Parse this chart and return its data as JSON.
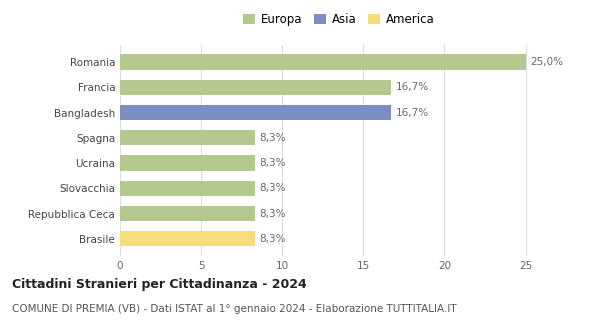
{
  "categories_top_to_bottom": [
    "Romania",
    "Francia",
    "Bangladesh",
    "Spagna",
    "Ucraina",
    "Slovacchia",
    "Repubblica Ceca",
    "Brasile"
  ],
  "values_top_to_bottom": [
    25.0,
    16.7,
    16.7,
    8.3,
    8.3,
    8.3,
    8.3,
    8.3
  ],
  "colors_top_to_bottom": [
    "#b5c98e",
    "#b5c98e",
    "#7b8ec4",
    "#b5c98e",
    "#b5c98e",
    "#b5c98e",
    "#b5c98e",
    "#f7dc7a"
  ],
  "labels_top_to_bottom": [
    "25,0%",
    "16,7%",
    "16,7%",
    "8,3%",
    "8,3%",
    "8,3%",
    "8,3%",
    "8,3%"
  ],
  "legend": [
    {
      "label": "Europa",
      "color": "#b5c98e"
    },
    {
      "label": "Asia",
      "color": "#7b8ec4"
    },
    {
      "label": "America",
      "color": "#f7dc7a"
    }
  ],
  "xlim": [
    0,
    27
  ],
  "xticks": [
    0,
    5,
    10,
    15,
    20,
    25
  ],
  "title": "Cittadini Stranieri per Cittadinanza - 2024",
  "subtitle": "COMUNE DI PREMIA (VB) - Dati ISTAT al 1° gennaio 2024 - Elaborazione TUTTITALIA.IT",
  "title_fontsize": 9,
  "subtitle_fontsize": 7.5,
  "tick_fontsize": 7.5,
  "label_fontsize": 7.5,
  "legend_fontsize": 8.5,
  "bar_height": 0.6,
  "background_color": "#ffffff",
  "grid_color": "#dddddd"
}
